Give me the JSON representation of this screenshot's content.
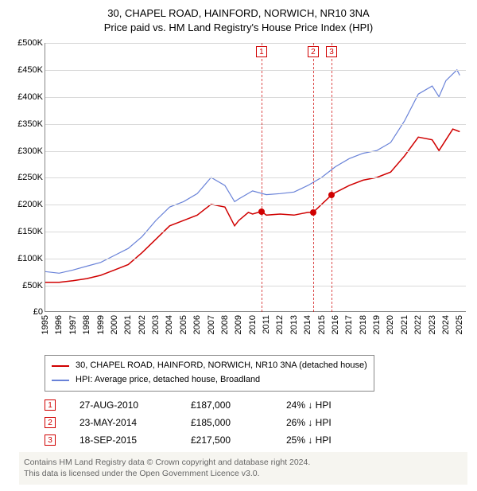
{
  "title": {
    "line1": "30, CHAPEL ROAD, HAINFORD, NORWICH, NR10 3NA",
    "line2": "Price paid vs. HM Land Registry's House Price Index (HPI)"
  },
  "chart": {
    "type": "line",
    "plot_background": "#ffffff",
    "grid_color": "#d9d9d9",
    "axis_color": "#888888",
    "label_fontsize": 11,
    "label_color": "#000000",
    "xlim": [
      1995,
      2025.5
    ],
    "ylim": [
      0,
      500000
    ],
    "ytick_step": 50000,
    "yticks": [
      {
        "v": 0,
        "label": "£0"
      },
      {
        "v": 50000,
        "label": "£50K"
      },
      {
        "v": 100000,
        "label": "£100K"
      },
      {
        "v": 150000,
        "label": "£150K"
      },
      {
        "v": 200000,
        "label": "£200K"
      },
      {
        "v": 250000,
        "label": "£250K"
      },
      {
        "v": 300000,
        "label": "£300K"
      },
      {
        "v": 350000,
        "label": "£350K"
      },
      {
        "v": 400000,
        "label": "£400K"
      },
      {
        "v": 450000,
        "label": "£450K"
      },
      {
        "v": 500000,
        "label": "£500K"
      }
    ],
    "xticks": [
      1995,
      1996,
      1997,
      1998,
      1999,
      2000,
      2001,
      2002,
      2003,
      2004,
      2005,
      2006,
      2007,
      2008,
      2009,
      2010,
      2011,
      2012,
      2013,
      2014,
      2015,
      2016,
      2017,
      2018,
      2019,
      2020,
      2021,
      2022,
      2023,
      2024,
      2025
    ],
    "series": [
      {
        "name": "property",
        "label": "30, CHAPEL ROAD, HAINFORD, NORWICH, NR10 3NA (detached house)",
        "color": "#d00000",
        "line_width": 1.5,
        "data": [
          [
            1995,
            55000
          ],
          [
            1996,
            55000
          ],
          [
            1997,
            58000
          ],
          [
            1998,
            62000
          ],
          [
            1999,
            68000
          ],
          [
            2000,
            78000
          ],
          [
            2001,
            88000
          ],
          [
            2002,
            110000
          ],
          [
            2003,
            135000
          ],
          [
            2004,
            160000
          ],
          [
            2005,
            170000
          ],
          [
            2006,
            180000
          ],
          [
            2007,
            200000
          ],
          [
            2008,
            195000
          ],
          [
            2008.7,
            160000
          ],
          [
            2009,
            170000
          ],
          [
            2009.7,
            185000
          ],
          [
            2010,
            182000
          ],
          [
            2010.65,
            187000
          ],
          [
            2011,
            180000
          ],
          [
            2012,
            182000
          ],
          [
            2013,
            180000
          ],
          [
            2014,
            185000
          ],
          [
            2014.39,
            185000
          ],
          [
            2015,
            200000
          ],
          [
            2015.72,
            217500
          ],
          [
            2016,
            222000
          ],
          [
            2017,
            235000
          ],
          [
            2018,
            245000
          ],
          [
            2019,
            250000
          ],
          [
            2020,
            260000
          ],
          [
            2021,
            290000
          ],
          [
            2022,
            325000
          ],
          [
            2023,
            320000
          ],
          [
            2023.5,
            300000
          ],
          [
            2024,
            320000
          ],
          [
            2024.5,
            340000
          ],
          [
            2025,
            335000
          ]
        ]
      },
      {
        "name": "hpi",
        "label": "HPI: Average price, detached house, Broadland",
        "color": "#6982d8",
        "line_width": 1.2,
        "data": [
          [
            1995,
            75000
          ],
          [
            1996,
            72000
          ],
          [
            1997,
            78000
          ],
          [
            1998,
            85000
          ],
          [
            1999,
            92000
          ],
          [
            2000,
            105000
          ],
          [
            2001,
            118000
          ],
          [
            2002,
            140000
          ],
          [
            2003,
            170000
          ],
          [
            2004,
            195000
          ],
          [
            2005,
            205000
          ],
          [
            2006,
            220000
          ],
          [
            2007,
            250000
          ],
          [
            2008,
            235000
          ],
          [
            2008.7,
            205000
          ],
          [
            2009,
            210000
          ],
          [
            2010,
            225000
          ],
          [
            2011,
            218000
          ],
          [
            2012,
            220000
          ],
          [
            2013,
            223000
          ],
          [
            2014,
            235000
          ],
          [
            2015,
            250000
          ],
          [
            2016,
            270000
          ],
          [
            2017,
            285000
          ],
          [
            2018,
            295000
          ],
          [
            2019,
            300000
          ],
          [
            2020,
            315000
          ],
          [
            2021,
            355000
          ],
          [
            2022,
            405000
          ],
          [
            2023,
            420000
          ],
          [
            2023.5,
            400000
          ],
          [
            2024,
            430000
          ],
          [
            2024.8,
            450000
          ],
          [
            2025,
            440000
          ]
        ]
      }
    ],
    "reference_lines": [
      {
        "n": "1",
        "year": 2010.65,
        "date": "27-AUG-2010",
        "price": "£187,000",
        "pct": "24% ↓ HPI",
        "marker_y": 187000
      },
      {
        "n": "2",
        "year": 2014.39,
        "date": "23-MAY-2014",
        "price": "£185,000",
        "pct": "26% ↓ HPI",
        "marker_y": 185000
      },
      {
        "n": "3",
        "year": 2015.72,
        "date": "18-SEP-2015",
        "price": "£217,500",
        "pct": "25% ↓ HPI",
        "marker_y": 217500
      }
    ],
    "marker_color": "#d00000",
    "marker_size": 8
  },
  "legend": {
    "border_color": "#888888",
    "fontsize": 11
  },
  "footer": {
    "line1": "Contains HM Land Registry data © Crown copyright and database right 2024.",
    "line2": "This data is licensed under the Open Government Licence v3.0.",
    "background": "#f6f5f0",
    "color": "#666666"
  }
}
